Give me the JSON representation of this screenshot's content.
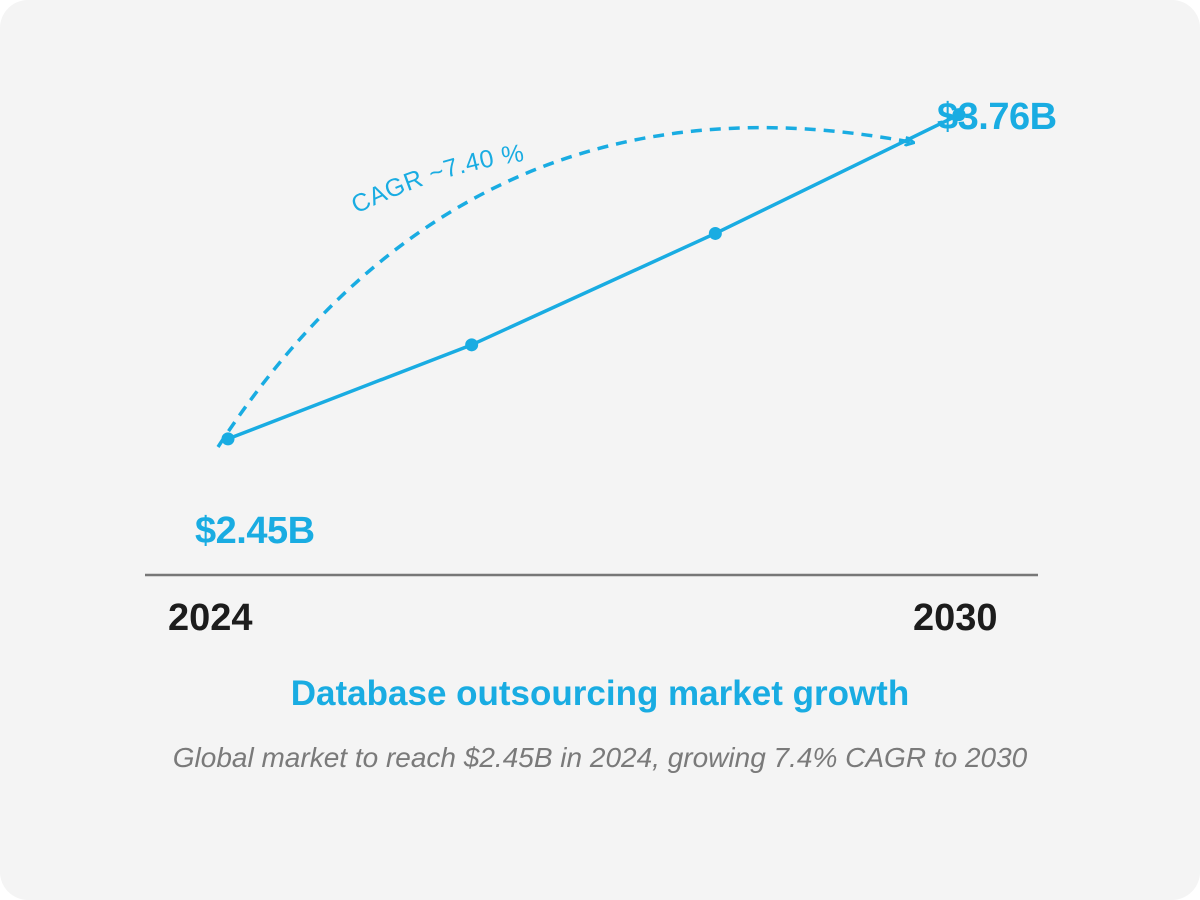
{
  "theme": {
    "accent": "#19ace2",
    "axis": "#777777",
    "year_text": "#1c1c1c",
    "subtitle_text": "#7a7a7a"
  },
  "chart_data": {
    "type": "line",
    "title": "Database outsourcing market growth",
    "subtitle": "Global market to reach $2.45B in 2024, growing 7.4% CAGR to 2030",
    "x": [
      2024,
      2026,
      2028,
      2030
    ],
    "series": [
      {
        "values": [
          2.45,
          2.83,
          3.28,
          3.76
        ]
      }
    ],
    "x_tick_labels": [
      "2024",
      "2030"
    ],
    "value_labels": {
      "start": "$2.45B",
      "end": "$3.76B"
    },
    "annotation": "CAGR ~7.40 %",
    "xlim": [
      2024,
      2030
    ],
    "ylim": [
      1.9,
      3.9
    ],
    "grid": false,
    "legend": "none"
  }
}
